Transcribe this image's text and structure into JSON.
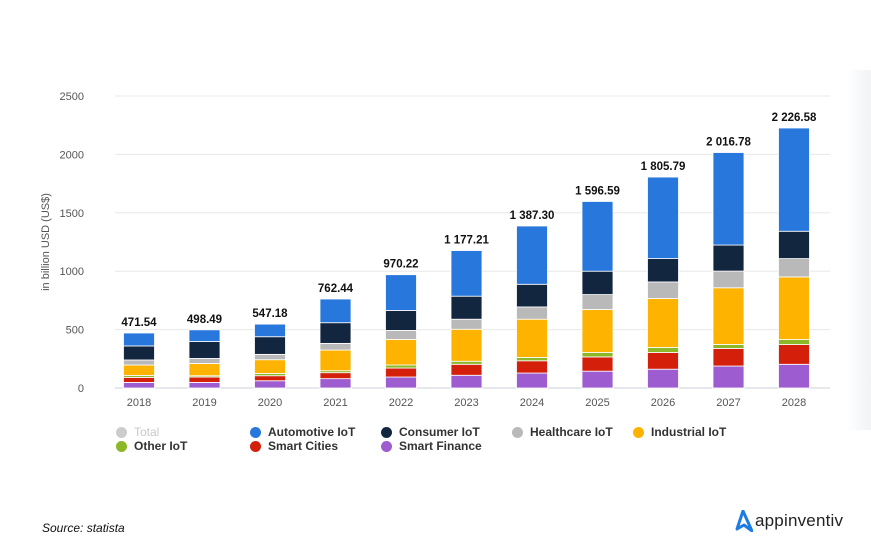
{
  "chart_data": {
    "type": "bar",
    "stacked": true,
    "ylabel": "in billion USD (US$)",
    "ylim": [
      0,
      2500
    ],
    "yticks": [
      0,
      500,
      1000,
      1500,
      2000,
      2500
    ],
    "grid": true,
    "legend_position": "bottom",
    "categories": [
      "2018",
      "2019",
      "2020",
      "2021",
      "2022",
      "2023",
      "2024",
      "2025",
      "2026",
      "2027",
      "2028"
    ],
    "totals": [
      "471.54",
      "498.49",
      "547.18",
      "762.44",
      "970.22",
      "1 177.21",
      "1 387.30",
      "1 596.59",
      "1 805.79",
      "2 016.78",
      "2 226.58"
    ],
    "series": [
      {
        "name": "Smart Finance",
        "color": "#9d5ccf",
        "values": [
          48,
          48,
          62,
          80,
          94,
          109,
          128,
          144,
          161,
          188,
          203
        ]
      },
      {
        "name": "Smart Cities",
        "color": "#d4200a",
        "values": [
          43,
          46,
          43,
          51,
          77,
          94,
          105,
          122,
          143,
          151,
          169
        ]
      },
      {
        "name": "Other IoT",
        "color": "#8cb828",
        "values": [
          17,
          11,
          20,
          17,
          26,
          26,
          29,
          38,
          43,
          34,
          43
        ]
      },
      {
        "name": "Industrial IoT",
        "color": "#fdb300",
        "values": [
          89,
          105,
          117,
          177,
          219,
          274,
          327,
          368,
          419,
          485,
          536
        ]
      },
      {
        "name": "Healthcare IoT",
        "color": "#b9b9b9",
        "values": [
          43,
          43,
          46,
          57,
          77,
          86,
          105,
          128,
          142,
          143,
          157
        ]
      },
      {
        "name": "Consumer IoT",
        "color": "#13263f",
        "values": [
          120,
          145,
          151,
          177,
          171,
          197,
          194,
          200,
          200,
          223,
          234
        ]
      },
      {
        "name": "Automotive IoT",
        "color": "#2877dc",
        "values": [
          111,
          100,
          108,
          203,
          306,
          391,
          499,
          597,
          698,
          792,
          884
        ]
      }
    ]
  },
  "legend": {
    "total": {
      "label": "Total",
      "color": "#cccccc"
    },
    "automotive": {
      "label": "Automotive IoT",
      "color": "#2877dc"
    },
    "consumer": {
      "label": "Consumer IoT",
      "color": "#13263f"
    },
    "healthcare": {
      "label": "Healthcare IoT",
      "color": "#b9b9b9"
    },
    "industrial": {
      "label": "Industrial IoT",
      "color": "#fdb300"
    },
    "other": {
      "label": "Other IoT",
      "color": "#8cb828"
    },
    "cities": {
      "label": "Smart Cities",
      "color": "#d4200a"
    },
    "finance": {
      "label": "Smart Finance",
      "color": "#9d5ccf"
    }
  },
  "footer": {
    "source": "Source: statista",
    "logo_text": "appinventiv",
    "logo_color": "#1e7be0"
  }
}
